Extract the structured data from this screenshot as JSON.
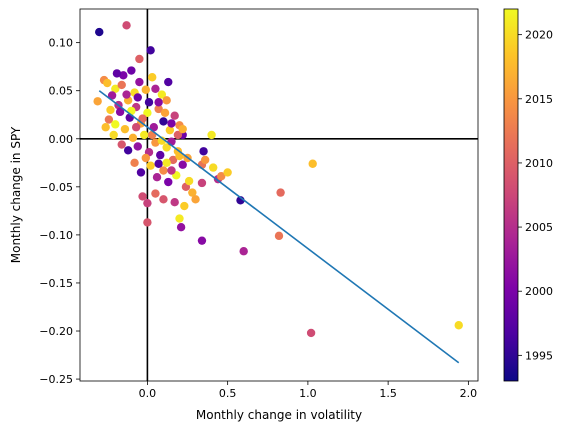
{
  "chart_data": {
    "type": "scatter",
    "title": "",
    "xlabel": "Monthly change in volatility",
    "ylabel": "Monthly change in SPY",
    "xlim": [
      -0.42,
      2.06
    ],
    "ylim": [
      -0.252,
      0.135
    ],
    "x_ticks": [
      0.0,
      0.5,
      1.0,
      1.5,
      2.0
    ],
    "x_tick_labels": [
      "0.0",
      "0.5",
      "1.0",
      "1.5",
      "2.0"
    ],
    "y_ticks": [
      0.1,
      0.05,
      0.0,
      -0.05,
      -0.1,
      -0.15,
      -0.2,
      -0.25
    ],
    "y_tick_labels": [
      "0.10",
      "0.05",
      "0.00",
      "−0.05",
      "−0.10",
      "−0.15",
      "−0.20",
      "−0.25"
    ],
    "colorbar": {
      "colormap": "plasma",
      "range": [
        1993,
        2022
      ],
      "ticks": [
        1995,
        2000,
        2005,
        2010,
        2015,
        2020
      ],
      "tick_labels": [
        "1995",
        "2000",
        "2005",
        "2010",
        "2015",
        "2020"
      ]
    },
    "reference_lines": {
      "horizontal_y": 0.0,
      "vertical_x": 0.0,
      "color": "#000000"
    },
    "regression_line": {
      "x": [
        -0.3,
        1.94
      ],
      "y": [
        0.05,
        -0.233
      ],
      "color": "#1f77b4"
    },
    "grid": false,
    "legend": "none",
    "points": [
      {
        "x": -0.3,
        "y": 0.111,
        "year": 1994
      },
      {
        "x": -0.13,
        "y": 0.118,
        "year": 2008
      },
      {
        "x": 0.02,
        "y": 0.092,
        "year": 1996
      },
      {
        "x": -0.05,
        "y": 0.083,
        "year": 2010
      },
      {
        "x": -0.27,
        "y": 0.061,
        "year": 2014
      },
      {
        "x": -0.31,
        "y": 0.039,
        "year": 2016
      },
      {
        "x": -0.25,
        "y": 0.058,
        "year": 2018
      },
      {
        "x": -0.2,
        "y": 0.052,
        "year": 2021
      },
      {
        "x": -0.22,
        "y": 0.045,
        "year": 2003
      },
      {
        "x": -0.15,
        "y": 0.066,
        "year": 2000
      },
      {
        "x": -0.1,
        "y": 0.071,
        "year": 1999
      },
      {
        "x": -0.08,
        "y": 0.048,
        "year": 2020
      },
      {
        "x": -0.18,
        "y": 0.035,
        "year": 2005
      },
      {
        "x": -0.12,
        "y": 0.04,
        "year": 2017
      },
      {
        "x": -0.05,
        "y": 0.059,
        "year": 2002
      },
      {
        "x": 0.03,
        "y": 0.064,
        "year": 2019
      },
      {
        "x": 0.05,
        "y": 0.052,
        "year": 2004
      },
      {
        "x": 0.09,
        "y": 0.046,
        "year": 2021
      },
      {
        "x": 0.13,
        "y": 0.059,
        "year": 1997
      },
      {
        "x": 0.12,
        "y": 0.04,
        "year": 2015
      },
      {
        "x": -0.24,
        "y": 0.02,
        "year": 2012
      },
      {
        "x": -0.2,
        "y": 0.015,
        "year": 2022
      },
      {
        "x": -0.17,
        "y": 0.028,
        "year": 2001
      },
      {
        "x": -0.14,
        "y": 0.01,
        "year": 2018
      },
      {
        "x": -0.11,
        "y": 0.022,
        "year": 1998
      },
      {
        "x": -0.07,
        "y": 0.033,
        "year": 2006
      },
      {
        "x": -0.04,
        "y": 0.016,
        "year": 2016
      },
      {
        "x": 0.0,
        "y": 0.027,
        "year": 2022
      },
      {
        "x": 0.04,
        "y": 0.012,
        "year": 2003
      },
      {
        "x": 0.07,
        "y": 0.031,
        "year": 2013
      },
      {
        "x": 0.1,
        "y": 0.018,
        "year": 1995
      },
      {
        "x": 0.14,
        "y": 0.009,
        "year": 2019
      },
      {
        "x": 0.17,
        "y": 0.024,
        "year": 2007
      },
      {
        "x": 0.2,
        "y": 0.014,
        "year": 2014
      },
      {
        "x": 0.22,
        "y": 0.004,
        "year": 1999
      },
      {
        "x": -0.21,
        "y": 0.004,
        "year": 2020
      },
      {
        "x": -0.16,
        "y": -0.006,
        "year": 2009
      },
      {
        "x": -0.12,
        "y": -0.012,
        "year": 1996
      },
      {
        "x": -0.09,
        "y": 0.001,
        "year": 2017
      },
      {
        "x": -0.06,
        "y": -0.008,
        "year": 2002
      },
      {
        "x": -0.02,
        "y": 0.004,
        "year": 2021
      },
      {
        "x": 0.01,
        "y": -0.014,
        "year": 2005
      },
      {
        "x": 0.05,
        "y": -0.004,
        "year": 2015
      },
      {
        "x": 0.08,
        "y": -0.017,
        "year": 1998
      },
      {
        "x": 0.12,
        "y": -0.009,
        "year": 2020
      },
      {
        "x": 0.16,
        "y": -0.022,
        "year": 2011
      },
      {
        "x": 0.19,
        "y": -0.013,
        "year": 2018
      },
      {
        "x": 0.22,
        "y": -0.027,
        "year": 2001
      },
      {
        "x": 0.25,
        "y": -0.02,
        "year": 2016
      },
      {
        "x": -0.08,
        "y": -0.025,
        "year": 2013
      },
      {
        "x": -0.04,
        "y": -0.035,
        "year": 1997
      },
      {
        "x": 0.02,
        "y": -0.028,
        "year": 2019
      },
      {
        "x": 0.06,
        "y": -0.04,
        "year": 2004
      },
      {
        "x": 0.1,
        "y": -0.033,
        "year": 2014
      },
      {
        "x": 0.13,
        "y": -0.045,
        "year": 2000
      },
      {
        "x": 0.18,
        "y": -0.038,
        "year": 2022
      },
      {
        "x": 0.2,
        "y": -0.018,
        "year": 2018
      },
      {
        "x": 0.24,
        "y": -0.05,
        "year": 2010
      },
      {
        "x": 0.26,
        "y": -0.044,
        "year": 2020
      },
      {
        "x": 0.28,
        "y": -0.056,
        "year": 2017
      },
      {
        "x": 0.3,
        "y": -0.063,
        "year": 2016
      },
      {
        "x": 0.34,
        "y": -0.027,
        "year": 2012
      },
      {
        "x": 0.35,
        "y": -0.013,
        "year": 1996
      },
      {
        "x": 0.36,
        "y": -0.022,
        "year": 2015
      },
      {
        "x": 0.4,
        "y": 0.004,
        "year": 2021
      },
      {
        "x": 0.41,
        "y": -0.03,
        "year": 2020
      },
      {
        "x": 0.44,
        "y": -0.042,
        "year": 2005
      },
      {
        "x": 0.46,
        "y": -0.039,
        "year": 2014
      },
      {
        "x": 0.5,
        "y": -0.035,
        "year": 2019
      },
      {
        "x": 0.34,
        "y": -0.046,
        "year": 2007
      },
      {
        "x": 0.58,
        "y": -0.064,
        "year": 1995
      },
      {
        "x": 0.6,
        "y": -0.117,
        "year": 2004
      },
      {
        "x": 0.34,
        "y": -0.106,
        "year": 2001
      },
      {
        "x": 0.21,
        "y": -0.092,
        "year": 2002
      },
      {
        "x": 0.2,
        "y": -0.083,
        "year": 2021
      },
      {
        "x": 0.23,
        "y": -0.07,
        "year": 2019
      },
      {
        "x": 0.17,
        "y": -0.066,
        "year": 2006
      },
      {
        "x": 0.1,
        "y": -0.063,
        "year": 2009
      },
      {
        "x": 0.05,
        "y": -0.057,
        "year": 2011
      },
      {
        "x": -0.03,
        "y": -0.06,
        "year": 2008
      },
      {
        "x": 0.0,
        "y": -0.067,
        "year": 2007
      },
      {
        "x": 0.0,
        "y": -0.087,
        "year": 2009
      },
      {
        "x": 0.82,
        "y": -0.101,
        "year": 2012
      },
      {
        "x": 0.83,
        "y": -0.056,
        "year": 2011
      },
      {
        "x": 1.02,
        "y": -0.202,
        "year": 2008
      },
      {
        "x": 1.03,
        "y": -0.026,
        "year": 2018
      },
      {
        "x": 1.94,
        "y": -0.194,
        "year": 2020
      },
      {
        "x": -0.19,
        "y": 0.068,
        "year": 1998
      },
      {
        "x": -0.16,
        "y": 0.056,
        "year": 2012
      },
      {
        "x": -0.06,
        "y": 0.043,
        "year": 1999
      },
      {
        "x": -0.01,
        "y": 0.051,
        "year": 2017
      },
      {
        "x": 0.07,
        "y": 0.038,
        "year": 2001
      },
      {
        "x": -0.23,
        "y": 0.03,
        "year": 2019
      },
      {
        "x": -0.13,
        "y": 0.046,
        "year": 2004
      },
      {
        "x": -0.1,
        "y": 0.029,
        "year": 2022
      },
      {
        "x": 0.01,
        "y": 0.038,
        "year": 1996
      },
      {
        "x": 0.11,
        "y": 0.027,
        "year": 2016
      },
      {
        "x": 0.15,
        "y": 0.016,
        "year": 2000
      },
      {
        "x": -0.26,
        "y": 0.012,
        "year": 2018
      },
      {
        "x": -0.07,
        "y": 0.012,
        "year": 2008
      },
      {
        "x": 0.03,
        "y": 0.004,
        "year": 2013
      },
      {
        "x": 0.09,
        "y": -0.002,
        "year": 2020
      },
      {
        "x": 0.15,
        "y": -0.003,
        "year": 2003
      },
      {
        "x": -0.01,
        "y": -0.02,
        "year": 2015
      },
      {
        "x": 0.07,
        "y": -0.026,
        "year": 1997
      },
      {
        "x": 0.12,
        "y": -0.025,
        "year": 2021
      },
      {
        "x": 0.15,
        "y": -0.033,
        "year": 2006
      },
      {
        "x": -0.03,
        "y": 0.021,
        "year": 2011
      },
      {
        "x": 0.19,
        "y": 0.004,
        "year": 2010
      },
      {
        "x": 0.22,
        "y": 0.01,
        "year": 2017
      }
    ]
  }
}
